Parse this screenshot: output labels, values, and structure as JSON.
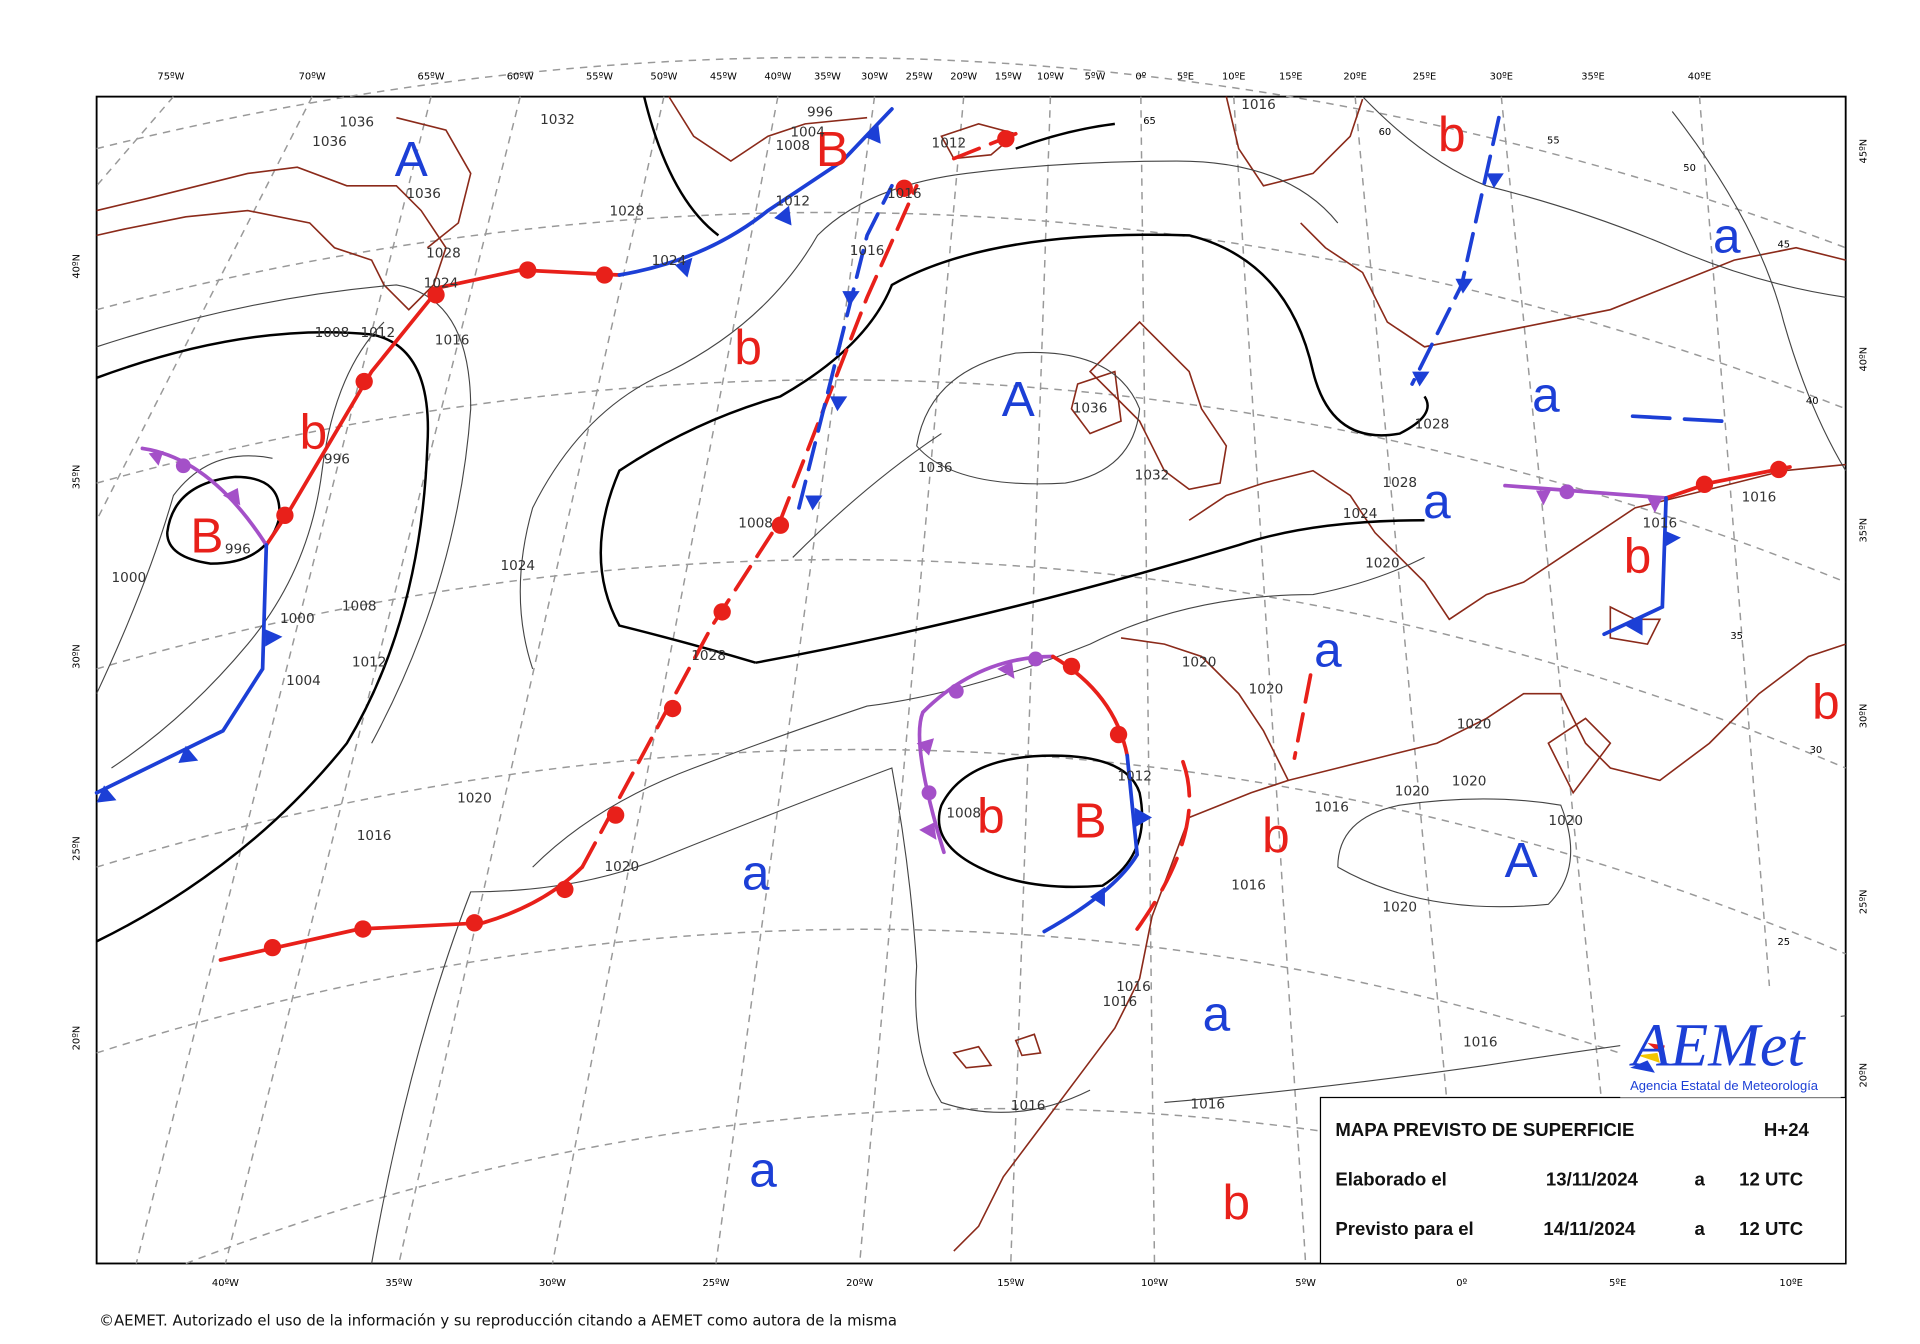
{
  "top_axis_labels": [
    "75ºW",
    "70ºW",
    "65ºW",
    "60ºW",
    "55ºW",
    "50ºW",
    "45ºW",
    "40ºW",
    "35ºW",
    "30ºW",
    "25ºW",
    "20ºW",
    "15ºW",
    "10ºW",
    "5ºW",
    "0º",
    "5ºE",
    "10ºE",
    "15ºE",
    "20ºE",
    "25ºE",
    "30ºE",
    "35ºE",
    "40ºE"
  ],
  "bottom_axis_labels": [
    "40ºW",
    "35ºW",
    "30ºW",
    "25ºW",
    "20ºW",
    "15ºW",
    "10ºW",
    "5ºW",
    "0º",
    "5ºE",
    "10ºE"
  ],
  "left_axis_labels": [
    "40ºN",
    "35ºN",
    "30ºN",
    "25ºN",
    "20ºN"
  ],
  "right_axis_labels": [
    "45ºN",
    "40ºN",
    "35ºN",
    "30ºN",
    "25ºN",
    "20ºN"
  ],
  "pressure_centers": [
    "A",
    "B",
    "b",
    "A",
    "b",
    "B",
    "b",
    "B",
    "a",
    "A",
    "a",
    "a",
    "a",
    "b",
    "b",
    "a",
    "b",
    "b",
    "a",
    "a",
    "b"
  ],
  "isobar_labels": [
    "1036",
    "1036",
    "1032",
    "1036",
    "1028",
    "1028",
    "1024",
    "1008",
    "1012",
    "1016",
    "996",
    "996",
    "1000",
    "1000",
    "1008",
    "1004",
    "1012",
    "1024",
    "1028",
    "1008",
    "1036",
    "1032",
    "1036",
    "1028",
    "1028",
    "1024",
    "1020",
    "1020",
    "1020",
    "1012",
    "1008",
    "1020",
    "1016",
    "1016",
    "1016",
    "1016",
    "1020",
    "1020",
    "1020",
    "1020",
    "1016",
    "1016",
    "1016",
    "1016",
    "1016",
    "1016",
    "1020",
    "1016",
    "1012",
    "1004",
    "996",
    "1008",
    "1012",
    "1016",
    "1024",
    "1016",
    "1020"
  ],
  "contour_labels": [
    "65",
    "55",
    "50",
    "45",
    "40",
    "35",
    "30",
    "25",
    "60"
  ],
  "info_box": {
    "title": "MAPA PREVISTO DE SUPERFICIE",
    "forecast_step": "H+24",
    "issued_label": "Elaborado el",
    "issued_date": "13/11/2024",
    "issued_at": "a",
    "issued_time": "12 UTC",
    "valid_label": "Previsto para el",
    "valid_date": "14/11/2024",
    "valid_at": "a",
    "valid_time": "12 UTC"
  },
  "logo": {
    "name": "AEMet",
    "subtitle": "Agencia Estatal de Meteorología"
  },
  "copyright": "©AEMET. Autorizado el uso de la información y su reproducción citando a AEMET como autora de la misma"
}
